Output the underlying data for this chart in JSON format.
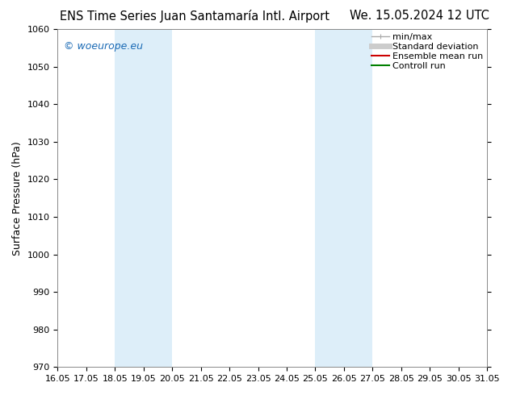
{
  "title_left": "ENS Time Series Juan Santamaría Intl. Airport",
  "title_right": "We. 15.05.2024 12 UTC",
  "ylabel": "Surface Pressure (hPa)",
  "ylim": [
    970,
    1060
  ],
  "yticks": [
    970,
    980,
    990,
    1000,
    1010,
    1020,
    1030,
    1040,
    1050,
    1060
  ],
  "xmin": 16.05,
  "xmax": 31.05,
  "xticks": [
    16.05,
    17.05,
    18.05,
    19.05,
    20.05,
    21.05,
    22.05,
    23.05,
    24.05,
    25.05,
    26.05,
    27.05,
    28.05,
    29.05,
    30.05,
    31.05
  ],
  "xtick_labels": [
    "16.05",
    "17.05",
    "18.05",
    "19.05",
    "20.05",
    "21.05",
    "22.05",
    "23.05",
    "24.05",
    "25.05",
    "26.05",
    "27.05",
    "28.05",
    "29.05",
    "30.05",
    "31.05"
  ],
  "shaded_bands": [
    {
      "xmin": 18.05,
      "xmax": 20.05
    },
    {
      "xmin": 25.05,
      "xmax": 27.05
    }
  ],
  "shade_color": "#ddeef9",
  "watermark_text": "© woeurope.eu",
  "watermark_color": "#1a6ab5",
  "legend_items": [
    {
      "label": "min/max",
      "color": "#aaaaaa",
      "lw": 1.0,
      "style": "caps"
    },
    {
      "label": "Standard deviation",
      "color": "#cccccc",
      "lw": 5,
      "style": "line"
    },
    {
      "label": "Ensemble mean run",
      "color": "#cc0000",
      "lw": 1.5,
      "style": "line"
    },
    {
      "label": "Controll run",
      "color": "#008000",
      "lw": 1.5,
      "style": "line"
    }
  ],
  "bg_color": "#ffffff",
  "title_fontsize": 10.5,
  "ylabel_fontsize": 9,
  "tick_fontsize": 8,
  "legend_fontsize": 8,
  "watermark_fontsize": 9
}
